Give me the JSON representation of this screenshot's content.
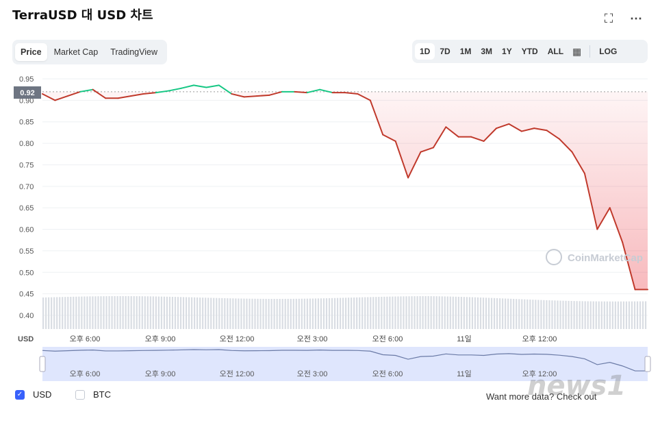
{
  "header": {
    "title": "TerraUSD 대 USD 차트"
  },
  "toolbar": {
    "fullscreen_icon": "fullscreen-icon",
    "more_icon": "more-icon"
  },
  "tabs": [
    "Price",
    "Market Cap",
    "TradingView"
  ],
  "ranges": [
    "1D",
    "7D",
    "1M",
    "3M",
    "1Y",
    "YTD",
    "ALL"
  ],
  "log_label": "LOG",
  "current_price": "0.92",
  "axis_unit": "USD",
  "watermark": "CoinMarketCap",
  "legend": {
    "usd": "USD",
    "btc": "BTC"
  },
  "cta": "Want more data? Check out",
  "news_watermark": "news1",
  "colors": {
    "up": "#16c784",
    "down": "#ea3943",
    "accent": "#3861fb"
  },
  "chart_data": {
    "type": "line",
    "title": "TerraUSD 대 USD 차트",
    "ylabel": "USD",
    "ylim": [
      0.4,
      0.95
    ],
    "yticks": [
      "0.95",
      "0.90",
      "0.85",
      "0.80",
      "0.75",
      "0.70",
      "0.65",
      "0.60",
      "0.55",
      "0.50",
      "0.45",
      "0.40"
    ],
    "xticks": [
      "오후 6:00",
      "오후 9:00",
      "오전 12:00",
      "오전 3:00",
      "오전 6:00",
      "11일",
      "오후 12:00"
    ],
    "baseline": 0.92,
    "x_hours": [
      0,
      0.5,
      1,
      1.5,
      2,
      2.5,
      3,
      3.5,
      4,
      4.5,
      5,
      5.5,
      6,
      6.5,
      7,
      7.5,
      8,
      8.5,
      9,
      9.5,
      10,
      10.5,
      11,
      11.5,
      12,
      12.5,
      13,
      13.5,
      14,
      14.5,
      15,
      15.5,
      16,
      16.5,
      17,
      17.5,
      18,
      18.5,
      19,
      19.5,
      20,
      20.5,
      21,
      21.5,
      22,
      22.5,
      23,
      23.5,
      24
    ],
    "series": [
      {
        "values": [
          0.915,
          0.9,
          0.91,
          0.92,
          0.925,
          0.905,
          0.905,
          0.91,
          0.915,
          0.918,
          0.922,
          0.928,
          0.935,
          0.93,
          0.935,
          0.915,
          0.908,
          0.91,
          0.912,
          0.92,
          0.92,
          0.918,
          0.925,
          0.918,
          0.918,
          0.915,
          0.9,
          0.82,
          0.805,
          0.72,
          0.78,
          0.79,
          0.838,
          0.815,
          0.815,
          0.805,
          0.835,
          0.845,
          0.828,
          0.835,
          0.83,
          0.81,
          0.78,
          0.73,
          0.6,
          0.65,
          0.57,
          0.46,
          0.46
        ]
      }
    ]
  }
}
